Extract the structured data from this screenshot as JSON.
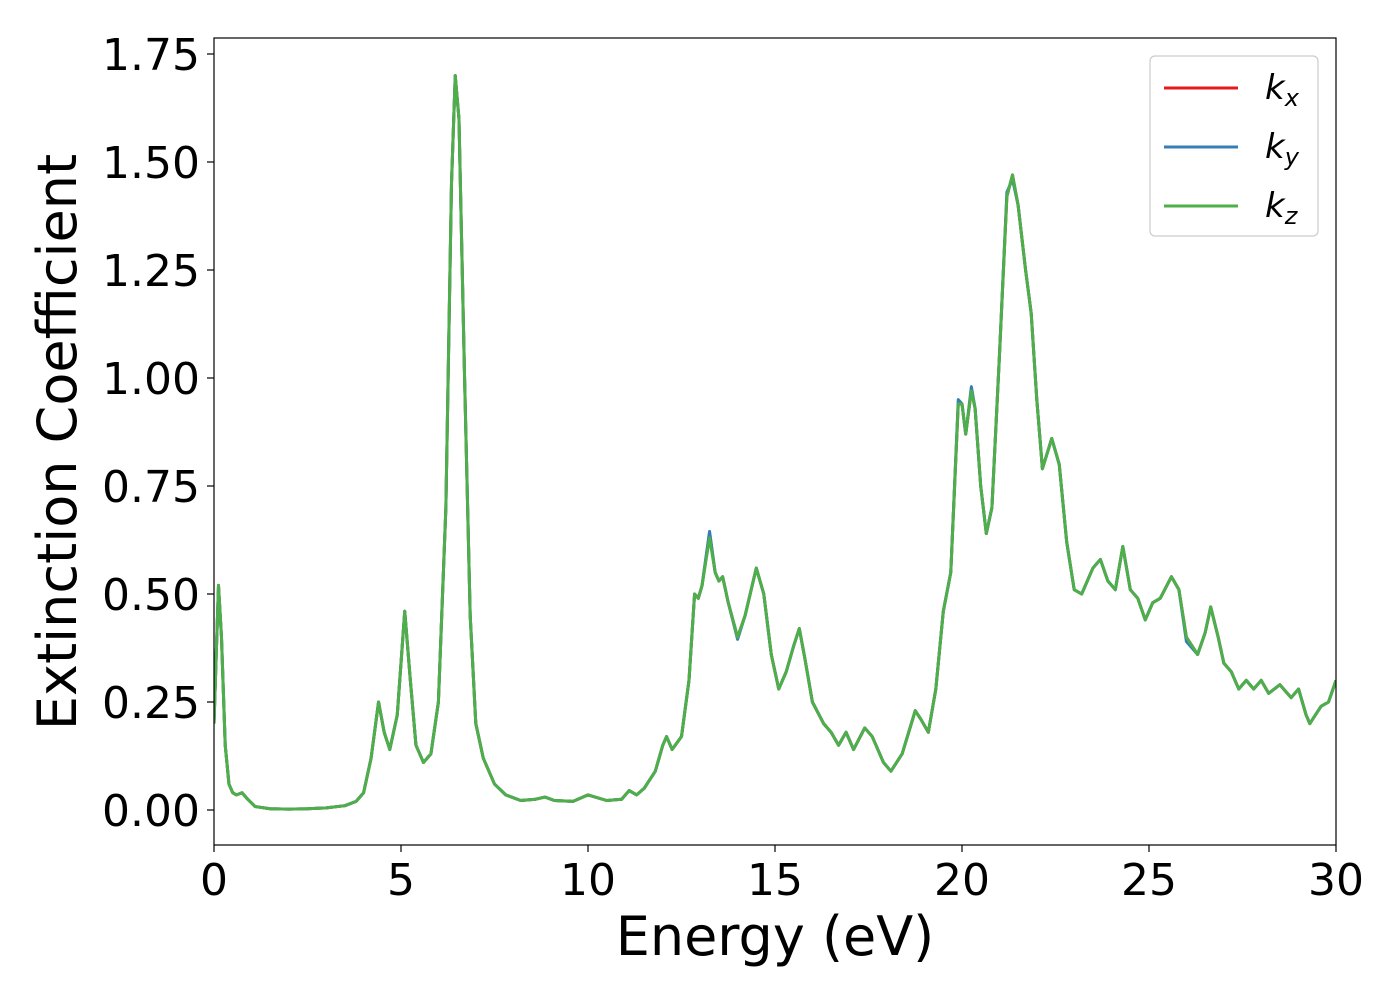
{
  "chart_data": {
    "type": "line",
    "xlabel": "Energy (eV)",
    "ylabel": "Extinction Coefficient",
    "xlim": [
      0,
      30
    ],
    "ylim": [
      -0.081,
      1.787
    ],
    "xticks": [
      0,
      5,
      10,
      15,
      20,
      25,
      30
    ],
    "yticks": [
      {
        "value": 0,
        "label": "0.00"
      },
      {
        "value": 0.25,
        "label": "0.25"
      },
      {
        "value": 0.5,
        "label": "0.50"
      },
      {
        "value": 0.75,
        "label": "0.75"
      },
      {
        "value": 1,
        "label": "1.00"
      },
      {
        "value": 1.25,
        "label": "1.25"
      },
      {
        "value": 1.5,
        "label": "1.50"
      },
      {
        "value": 1.75,
        "label": "1.75"
      }
    ],
    "legend": "upper right",
    "x": [
      0,
      0.12,
      0.2,
      0.3,
      0.4,
      0.5,
      0.6,
      0.75,
      0.9,
      1.1,
      1.5,
      2,
      2.5,
      3,
      3.5,
      3.8,
      4.0,
      4.2,
      4.4,
      4.55,
      4.7,
      4.9,
      5.1,
      5.25,
      5.4,
      5.6,
      5.8,
      6.0,
      6.2,
      6.35,
      6.45,
      6.55,
      6.7,
      6.85,
      7.0,
      7.2,
      7.5,
      7.8,
      8.2,
      8.6,
      8.85,
      9.1,
      9.6,
      10.0,
      10.5,
      10.9,
      11.1,
      11.3,
      11.5,
      11.8,
      12.0,
      12.1,
      12.25,
      12.5,
      12.7,
      12.85,
      12.95,
      13.05,
      13.25,
      13.4,
      13.5,
      13.6,
      13.75,
      14.0,
      14.2,
      14.5,
      14.7,
      14.9,
      15.1,
      15.3,
      15.5,
      15.65,
      15.8,
      16.0,
      16.3,
      16.5,
      16.7,
      16.9,
      17.1,
      17.4,
      17.6,
      17.9,
      18.1,
      18.4,
      18.75,
      18.9,
      19.1,
      19.3,
      19.5,
      19.7,
      19.9,
      20.0,
      20.1,
      20.25,
      20.35,
      20.5,
      20.65,
      20.8,
      21.0,
      21.2,
      21.35,
      21.5,
      21.7,
      21.85,
      22.0,
      22.15,
      22.4,
      22.6,
      22.8,
      23.0,
      23.2,
      23.5,
      23.7,
      23.9,
      24.1,
      24.3,
      24.5,
      24.7,
      24.9,
      25.1,
      25.3,
      25.6,
      25.8,
      26.0,
      26.3,
      26.5,
      26.65,
      26.85,
      27.0,
      27.2,
      27.4,
      27.6,
      27.8,
      28.0,
      28.2,
      28.5,
      28.8,
      29.0,
      29.2,
      29.3,
      29.6,
      29.8,
      30.0
    ],
    "series": [
      {
        "name": "kx",
        "color": "#e41a1c",
        "values": [
          0.2,
          0.52,
          0.4,
          0.15,
          0.06,
          0.04,
          0.035,
          0.04,
          0.025,
          0.008,
          0.003,
          0.002,
          0.003,
          0.005,
          0.01,
          0.02,
          0.04,
          0.12,
          0.25,
          0.18,
          0.14,
          0.22,
          0.46,
          0.3,
          0.15,
          0.11,
          0.13,
          0.25,
          0.7,
          1.45,
          1.7,
          1.6,
          1.0,
          0.45,
          0.2,
          0.12,
          0.06,
          0.035,
          0.022,
          0.025,
          0.03,
          0.022,
          0.02,
          0.035,
          0.022,
          0.025,
          0.045,
          0.035,
          0.05,
          0.09,
          0.15,
          0.17,
          0.14,
          0.17,
          0.3,
          0.5,
          0.49,
          0.52,
          0.64,
          0.55,
          0.53,
          0.54,
          0.48,
          0.4,
          0.45,
          0.56,
          0.5,
          0.36,
          0.28,
          0.32,
          0.38,
          0.42,
          0.35,
          0.25,
          0.2,
          0.18,
          0.15,
          0.18,
          0.14,
          0.19,
          0.17,
          0.11,
          0.09,
          0.13,
          0.23,
          0.21,
          0.18,
          0.28,
          0.46,
          0.55,
          0.94,
          0.94,
          0.87,
          0.97,
          0.93,
          0.75,
          0.64,
          0.7,
          1.05,
          1.42,
          1.47,
          1.4,
          1.25,
          1.15,
          0.95,
          0.79,
          0.86,
          0.8,
          0.62,
          0.51,
          0.5,
          0.56,
          0.58,
          0.53,
          0.51,
          0.61,
          0.51,
          0.49,
          0.44,
          0.48,
          0.49,
          0.54,
          0.51,
          0.4,
          0.36,
          0.41,
          0.47,
          0.4,
          0.34,
          0.32,
          0.28,
          0.3,
          0.28,
          0.3,
          0.27,
          0.29,
          0.26,
          0.28,
          0.22,
          0.2,
          0.24,
          0.25,
          0.3
        ]
      },
      {
        "name": "ky",
        "color": "#377eb8",
        "values": [
          0.2,
          0.52,
          0.4,
          0.15,
          0.06,
          0.04,
          0.035,
          0.04,
          0.025,
          0.008,
          0.003,
          0.002,
          0.003,
          0.005,
          0.01,
          0.02,
          0.04,
          0.12,
          0.25,
          0.18,
          0.14,
          0.22,
          0.46,
          0.3,
          0.15,
          0.11,
          0.13,
          0.25,
          0.7,
          1.45,
          1.7,
          1.6,
          1.0,
          0.45,
          0.2,
          0.12,
          0.06,
          0.035,
          0.022,
          0.025,
          0.03,
          0.022,
          0.02,
          0.035,
          0.022,
          0.025,
          0.045,
          0.035,
          0.05,
          0.09,
          0.15,
          0.17,
          0.14,
          0.17,
          0.3,
          0.5,
          0.49,
          0.52,
          0.645,
          0.55,
          0.53,
          0.54,
          0.48,
          0.395,
          0.45,
          0.56,
          0.5,
          0.36,
          0.28,
          0.32,
          0.38,
          0.42,
          0.35,
          0.25,
          0.2,
          0.18,
          0.15,
          0.18,
          0.14,
          0.19,
          0.17,
          0.11,
          0.09,
          0.13,
          0.23,
          0.21,
          0.18,
          0.28,
          0.46,
          0.55,
          0.95,
          0.94,
          0.87,
          0.98,
          0.93,
          0.75,
          0.64,
          0.7,
          1.05,
          1.43,
          1.46,
          1.4,
          1.25,
          1.15,
          0.95,
          0.79,
          0.86,
          0.8,
          0.62,
          0.51,
          0.5,
          0.56,
          0.58,
          0.53,
          0.51,
          0.61,
          0.51,
          0.49,
          0.44,
          0.48,
          0.49,
          0.54,
          0.51,
          0.39,
          0.36,
          0.41,
          0.47,
          0.4,
          0.34,
          0.32,
          0.28,
          0.3,
          0.28,
          0.3,
          0.27,
          0.29,
          0.26,
          0.28,
          0.22,
          0.2,
          0.24,
          0.25,
          0.3
        ]
      },
      {
        "name": "kz",
        "color": "#4daf4a",
        "values": [
          0.2,
          0.52,
          0.4,
          0.15,
          0.06,
          0.04,
          0.035,
          0.04,
          0.025,
          0.008,
          0.003,
          0.002,
          0.003,
          0.005,
          0.01,
          0.02,
          0.04,
          0.12,
          0.25,
          0.18,
          0.14,
          0.22,
          0.46,
          0.3,
          0.15,
          0.11,
          0.13,
          0.25,
          0.7,
          1.45,
          1.7,
          1.6,
          1.0,
          0.45,
          0.2,
          0.12,
          0.06,
          0.035,
          0.022,
          0.025,
          0.03,
          0.022,
          0.02,
          0.035,
          0.022,
          0.025,
          0.045,
          0.035,
          0.05,
          0.09,
          0.15,
          0.17,
          0.14,
          0.17,
          0.3,
          0.5,
          0.49,
          0.52,
          0.63,
          0.55,
          0.53,
          0.54,
          0.48,
          0.4,
          0.45,
          0.56,
          0.5,
          0.36,
          0.28,
          0.32,
          0.38,
          0.42,
          0.35,
          0.25,
          0.2,
          0.18,
          0.15,
          0.18,
          0.14,
          0.19,
          0.17,
          0.11,
          0.09,
          0.13,
          0.23,
          0.21,
          0.18,
          0.28,
          0.46,
          0.55,
          0.94,
          0.94,
          0.87,
          0.97,
          0.93,
          0.75,
          0.64,
          0.7,
          1.05,
          1.42,
          1.47,
          1.4,
          1.25,
          1.15,
          0.95,
          0.79,
          0.86,
          0.8,
          0.62,
          0.51,
          0.5,
          0.56,
          0.58,
          0.53,
          0.51,
          0.61,
          0.51,
          0.49,
          0.44,
          0.48,
          0.49,
          0.54,
          0.51,
          0.4,
          0.36,
          0.41,
          0.47,
          0.4,
          0.34,
          0.32,
          0.28,
          0.3,
          0.28,
          0.3,
          0.27,
          0.29,
          0.26,
          0.28,
          0.22,
          0.2,
          0.24,
          0.25,
          0.3
        ]
      }
    ]
  }
}
